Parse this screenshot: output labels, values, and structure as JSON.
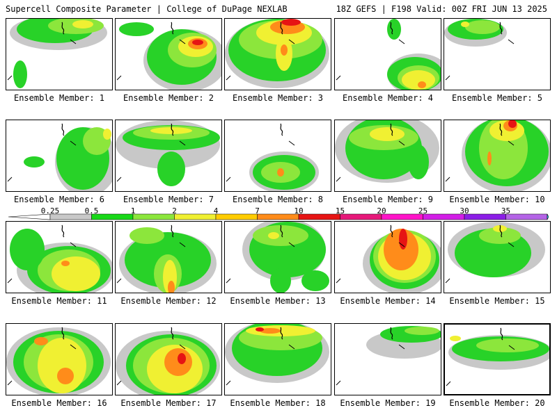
{
  "header": {
    "left_title": "Supercell Composite Parameter | College of DuPage NEXLAB",
    "right_title": "18Z GEFS | F198 Valid: 00Z FRI JUN 13 2025"
  },
  "colorbar": {
    "labels": [
      "0.25",
      "0.5",
      "1",
      "2",
      "4",
      "7",
      "10",
      "15",
      "20",
      "25",
      "30",
      "35"
    ],
    "colors": [
      "#c8c8c8",
      "#18d818",
      "#8ce63c",
      "#f0f032",
      "#ffcc00",
      "#ff8c1a",
      "#e61414",
      "#e6187a",
      "#ff14c8",
      "#d21ee6",
      "#8c1ee6",
      "#b464e6",
      "#28e6ff"
    ]
  },
  "fill_colors": {
    "gray": "#c8c8c8",
    "green": "#28d228",
    "lightgreen": "#8ce63c",
    "yellow": "#f0f032",
    "orange": "#ff8c1a",
    "red": "#e61414"
  },
  "panels": [
    {
      "label": "Ensemble Member: 1"
    },
    {
      "label": "Ensemble Member: 2"
    },
    {
      "label": "Ensemble Member: 3"
    },
    {
      "label": "Ensemble Member: 4"
    },
    {
      "label": "Ensemble Member: 5"
    },
    {
      "label": "Ensemble Member: 6"
    },
    {
      "label": "Ensemble Member: 7"
    },
    {
      "label": "Ensemble Member: 8"
    },
    {
      "label": "Ensemble Member: 9"
    },
    {
      "label": "Ensemble Member: 10"
    },
    {
      "label": "Ensemble Member: 11"
    },
    {
      "label": "Ensemble Member: 12"
    },
    {
      "label": "Ensemble Member: 13"
    },
    {
      "label": "Ensemble Member: 14"
    },
    {
      "label": "Ensemble Member: 15"
    },
    {
      "label": "Ensemble Member: 16"
    },
    {
      "label": "Ensemble Member: 17"
    },
    {
      "label": "Ensemble Member: 18"
    },
    {
      "label": "Ensemble Member: 19"
    },
    {
      "label": "Ensemble Member: 20"
    }
  ]
}
